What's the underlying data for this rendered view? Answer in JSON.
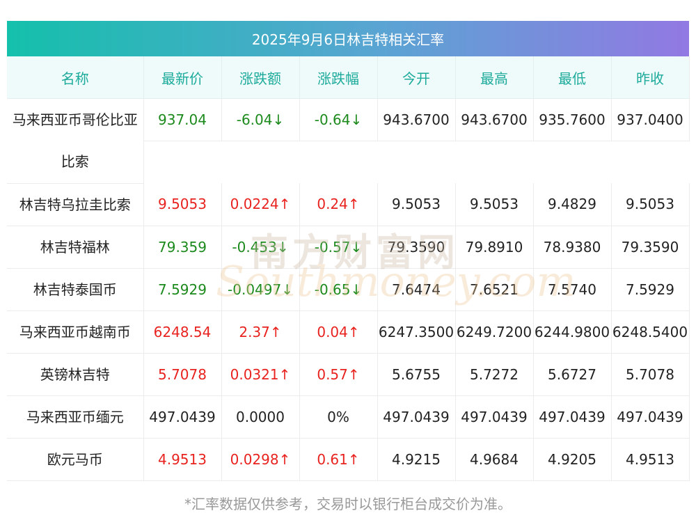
{
  "title": "2025年9月6日林吉特相关汇率",
  "headers": [
    "名称",
    "最新价",
    "涨跌额",
    "涨跌幅",
    "今开",
    "最高",
    "最低",
    "昨收"
  ],
  "rows": [
    {
      "name": "马来西亚币哥伦比亚比索",
      "latest": "937.04",
      "change": "-6.04↓",
      "pct": "-0.64↓",
      "open": "943.6700",
      "high": "943.6700",
      "low": "935.7600",
      "prev": "937.0400",
      "dir": "down"
    },
    {
      "name": "林吉特乌拉圭比索",
      "latest": "9.5053",
      "change": "0.0224↑",
      "pct": "0.24↑",
      "open": "9.5053",
      "high": "9.5053",
      "low": "9.4829",
      "prev": "9.5053",
      "dir": "up"
    },
    {
      "name": "林吉特福林",
      "latest": "79.359",
      "change": "-0.453↓",
      "pct": "-0.57↓",
      "open": "79.3590",
      "high": "79.8910",
      "low": "78.9380",
      "prev": "79.3590",
      "dir": "down"
    },
    {
      "name": "林吉特泰国币",
      "latest": "7.5929",
      "change": "-0.0497↓",
      "pct": "-0.65↓",
      "open": "7.6474",
      "high": "7.6521",
      "low": "7.5740",
      "prev": "7.5929",
      "dir": "down"
    },
    {
      "name": "马来西亚币越南币",
      "latest": "6248.54",
      "change": "2.37↑",
      "pct": "0.04↑",
      "open": "6247.3500",
      "high": "6249.7200",
      "low": "6244.9800",
      "prev": "6248.5400",
      "dir": "up"
    },
    {
      "name": "英镑林吉特",
      "latest": "5.7078",
      "change": "0.0321↑",
      "pct": "0.57↑",
      "open": "5.6755",
      "high": "5.7272",
      "low": "5.6727",
      "prev": "5.7078",
      "dir": "up"
    },
    {
      "name": "马来西亚币缅元",
      "latest": "497.0439",
      "change": "0.0000",
      "pct": "0%",
      "open": "497.0439",
      "high": "497.0439",
      "low": "497.0439",
      "prev": "497.0439",
      "dir": "flat"
    },
    {
      "name": "欧元马币",
      "latest": "4.9513",
      "change": "0.0298↑",
      "pct": "0.61↑",
      "open": "4.9215",
      "high": "4.9684",
      "low": "4.9205",
      "prev": "4.9513",
      "dir": "up"
    }
  ],
  "watermark": {
    "cn": "南方财富网",
    "en": "Southmoney.com"
  },
  "footer": "*汇率数据仅供参考，交易时以银行柜台成交价为准。",
  "colors": {
    "up": "#e8231f",
    "down": "#1c8a1c",
    "header_text": "#1cab9b",
    "title_gradient_start": "#14c0ab",
    "title_gradient_end": "#9279e3"
  }
}
